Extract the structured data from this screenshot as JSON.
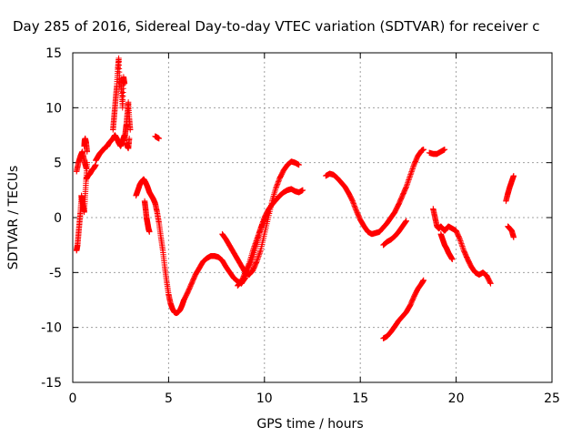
{
  "chart_data": {
    "type": "scatter",
    "title": "Day 285 of 2016, Sidereal Day-to-day VTEC variation (SDTVAR) for receiver c",
    "xlabel": "GPS time / hours",
    "ylabel": "SDTVAR / TECUs",
    "xlim": [
      0,
      25
    ],
    "ylim": [
      -15,
      15
    ],
    "xticks": [
      "0",
      "5",
      "10",
      "15",
      "20",
      "25"
    ],
    "yticks": [
      "-15",
      "-10",
      "-5",
      "0",
      "5",
      "10",
      "15"
    ],
    "grid": true,
    "marker": "+",
    "color": "#ff0000",
    "traces": [
      {
        "id": "t1",
        "x": [
          0.2,
          0.25,
          0.3,
          0.35,
          0.4,
          0.45
        ],
        "y": [
          -3.0,
          -2.5,
          -1.5,
          -0.5,
          0.5,
          1.8
        ]
      },
      {
        "id": "t2",
        "x": [
          0.2,
          0.3,
          0.4,
          0.5,
          0.6,
          0.7
        ],
        "y": [
          4.2,
          5.0,
          5.6,
          6.0,
          5.2,
          4.5
        ]
      },
      {
        "id": "t3",
        "x": [
          0.45,
          0.5,
          0.55,
          0.6,
          0.65,
          0.7,
          0.75
        ],
        "y": [
          2.0,
          1.5,
          1.0,
          0.5,
          2.0,
          3.5,
          5.0
        ]
      },
      {
        "id": "t4",
        "x": [
          0.6,
          0.62,
          0.65,
          0.7,
          0.75
        ],
        "y": [
          6.5,
          7.0,
          7.2,
          6.8,
          6.0
        ]
      },
      {
        "id": "t5",
        "x": [
          0.7,
          0.8,
          0.9,
          1.0,
          1.1,
          1.2
        ],
        "y": [
          3.5,
          3.8,
          4.0,
          4.3,
          4.5,
          4.8
        ]
      },
      {
        "id": "t6",
        "x": [
          1.2,
          1.3,
          1.4,
          1.5,
          1.6,
          1.7,
          1.8,
          1.9,
          2.0,
          2.1,
          2.2,
          2.3,
          2.4,
          2.5,
          2.6,
          2.7
        ],
        "y": [
          5.2,
          5.5,
          5.8,
          6.0,
          6.2,
          6.4,
          6.5,
          6.8,
          7.0,
          7.2,
          7.5,
          7.2,
          6.8,
          6.5,
          7.0,
          7.5
        ]
      },
      {
        "id": "t7",
        "x": [
          2.1,
          2.15,
          2.2,
          2.25,
          2.3,
          2.35,
          2.4,
          2.45
        ],
        "y": [
          8.0,
          9.0,
          10.0,
          11.0,
          12.0,
          13.5,
          14.5,
          12.0
        ]
      },
      {
        "id": "t8",
        "x": [
          2.5,
          2.55,
          2.6,
          2.65,
          2.7
        ],
        "y": [
          12.5,
          11.5,
          10.0,
          12.8,
          12.2
        ]
      },
      {
        "id": "t9",
        "x": [
          2.7,
          2.75,
          2.8,
          2.85,
          2.9,
          2.95,
          3.0
        ],
        "y": [
          7.0,
          7.8,
          8.5,
          9.5,
          10.5,
          9.0,
          8.0
        ]
      },
      {
        "id": "t10",
        "x": [
          2.8,
          2.85,
          2.9,
          2.95
        ],
        "y": [
          6.8,
          6.5,
          6.3,
          7.2
        ]
      },
      {
        "id": "t11",
        "x": [
          3.3,
          3.4,
          3.5,
          3.6,
          3.7,
          3.8,
          3.9,
          4.0,
          4.1,
          4.2,
          4.3,
          4.4,
          4.5,
          4.6,
          4.7,
          4.8,
          4.9,
          5.0,
          5.1,
          5.2,
          5.3,
          5.4,
          5.5,
          5.6,
          5.7,
          5.8
        ],
        "y": [
          2.0,
          2.5,
          3.0,
          3.3,
          3.5,
          3.2,
          2.8,
          2.3,
          2.0,
          1.7,
          1.3,
          0.5,
          -0.5,
          -1.8,
          -3.0,
          -4.5,
          -5.8,
          -7.0,
          -7.8,
          -8.3,
          -8.6,
          -8.7,
          -8.6,
          -8.4,
          -8.0,
          -7.5
        ]
      },
      {
        "id": "t12",
        "x": [
          3.75,
          3.8,
          3.85,
          3.9,
          3.95,
          4.0
        ],
        "y": [
          1.5,
          0.8,
          0.0,
          -0.5,
          -1.0,
          -1.3
        ]
      },
      {
        "id": "t13",
        "x": [
          4.3,
          4.4,
          4.5
        ],
        "y": [
          7.4,
          7.3,
          7.2
        ]
      },
      {
        "id": "t14",
        "x": [
          5.8,
          6.0,
          6.2,
          6.4,
          6.6,
          6.8,
          7.0,
          7.2,
          7.4,
          7.6,
          7.8,
          8.0,
          8.2,
          8.4,
          8.6,
          8.8
        ],
        "y": [
          -7.5,
          -6.8,
          -6.0,
          -5.2,
          -4.6,
          -4.0,
          -3.7,
          -3.5,
          -3.5,
          -3.6,
          -3.9,
          -4.5,
          -5.0,
          -5.5,
          -5.8,
          -6.0
        ]
      },
      {
        "id": "t15",
        "x": [
          7.8,
          8.0,
          8.2,
          8.4,
          8.6,
          8.8,
          9.0,
          9.2,
          9.4,
          9.6,
          9.8,
          10.0,
          10.2,
          10.4,
          10.6,
          10.8,
          11.0,
          11.2,
          11.4,
          11.6,
          11.8
        ],
        "y": [
          -1.5,
          -2.0,
          -2.6,
          -3.2,
          -3.8,
          -4.4,
          -5.0,
          -5.2,
          -4.8,
          -4.0,
          -3.0,
          -1.5,
          0.0,
          1.5,
          2.7,
          3.6,
          4.3,
          4.8,
          5.1,
          5.0,
          4.8
        ]
      },
      {
        "id": "t16",
        "x": [
          8.8,
          9.0,
          9.2,
          9.4,
          9.6,
          9.8,
          10.0,
          10.2,
          10.4,
          10.6,
          10.8,
          11.0,
          11.2,
          11.4,
          11.6,
          11.8,
          12.0
        ],
        "y": [
          -6.0,
          -5.5,
          -4.5,
          -3.5,
          -2.3,
          -1.0,
          0.0,
          0.7,
          1.2,
          1.6,
          2.0,
          2.3,
          2.5,
          2.6,
          2.4,
          2.3,
          2.5
        ]
      },
      {
        "id": "t17",
        "x": [
          8.6,
          8.8,
          9.0,
          9.2,
          9.4,
          9.6,
          9.8,
          10.0,
          10.2
        ],
        "y": [
          -6.2,
          -5.8,
          -5.0,
          -4.2,
          -3.0,
          -2.0,
          -1.0,
          -0.2,
          0.5
        ]
      },
      {
        "id": "t18",
        "x": [
          13.2,
          13.4,
          13.6,
          13.8,
          14.0,
          14.2,
          14.4,
          14.6,
          14.8,
          15.0,
          15.2,
          15.4,
          15.6,
          15.8,
          16.0,
          16.2,
          16.4,
          16.6,
          16.8,
          17.0,
          17.2,
          17.4,
          17.6,
          17.8,
          18.0,
          18.2,
          18.3
        ],
        "y": [
          3.8,
          4.0,
          3.9,
          3.6,
          3.2,
          2.8,
          2.2,
          1.5,
          0.6,
          -0.2,
          -0.8,
          -1.3,
          -1.5,
          -1.4,
          -1.3,
          -0.9,
          -0.5,
          0.0,
          0.5,
          1.2,
          2.0,
          2.8,
          3.8,
          4.8,
          5.6,
          6.1,
          6.2
        ]
      },
      {
        "id": "t19",
        "x": [
          16.2,
          16.4,
          16.6,
          16.8,
          17.0,
          17.2,
          17.4
        ],
        "y": [
          -2.5,
          -2.2,
          -2.0,
          -1.7,
          -1.3,
          -0.8,
          -0.3
        ]
      },
      {
        "id": "t20",
        "x": [
          16.2,
          16.4,
          16.6,
          16.8,
          17.0,
          17.2,
          17.4,
          17.6,
          17.8,
          18.0,
          18.2,
          18.3
        ],
        "y": [
          -11.0,
          -10.8,
          -10.4,
          -9.9,
          -9.4,
          -9.0,
          -8.6,
          -8.0,
          -7.2,
          -6.5,
          -6.0,
          -5.7
        ]
      },
      {
        "id": "t21",
        "x": [
          18.6,
          18.8,
          19.0,
          19.2,
          19.4
        ],
        "y": [
          5.9,
          5.8,
          5.8,
          6.0,
          6.2
        ]
      },
      {
        "id": "t22",
        "x": [
          18.8,
          18.9,
          19.0,
          19.1,
          19.2,
          19.3,
          19.4,
          19.5,
          19.6,
          19.8,
          20.0,
          20.2,
          20.4,
          20.6,
          20.8,
          21.0,
          21.2,
          21.4,
          21.6,
          21.8
        ],
        "y": [
          0.8,
          0.0,
          -0.8,
          -1.0,
          -0.8,
          -1.0,
          -1.2,
          -1.0,
          -0.8,
          -1.0,
          -1.2,
          -2.0,
          -3.0,
          -3.8,
          -4.5,
          -5.0,
          -5.2,
          -5.0,
          -5.3,
          -6.0
        ]
      },
      {
        "id": "t23",
        "x": [
          19.2,
          19.3,
          19.4,
          19.5,
          19.6,
          19.7,
          19.8
        ],
        "y": [
          -1.5,
          -2.0,
          -2.5,
          -2.8,
          -3.2,
          -3.5,
          -3.8
        ]
      },
      {
        "id": "t24",
        "x": [
          22.6,
          22.7,
          22.8,
          22.9,
          23.0
        ],
        "y": [
          1.5,
          2.2,
          2.8,
          3.3,
          3.8
        ]
      },
      {
        "id": "t25",
        "x": [
          22.7,
          22.8,
          22.9,
          23.0
        ],
        "y": [
          -0.8,
          -1.0,
          -1.2,
          -1.8
        ]
      }
    ]
  }
}
